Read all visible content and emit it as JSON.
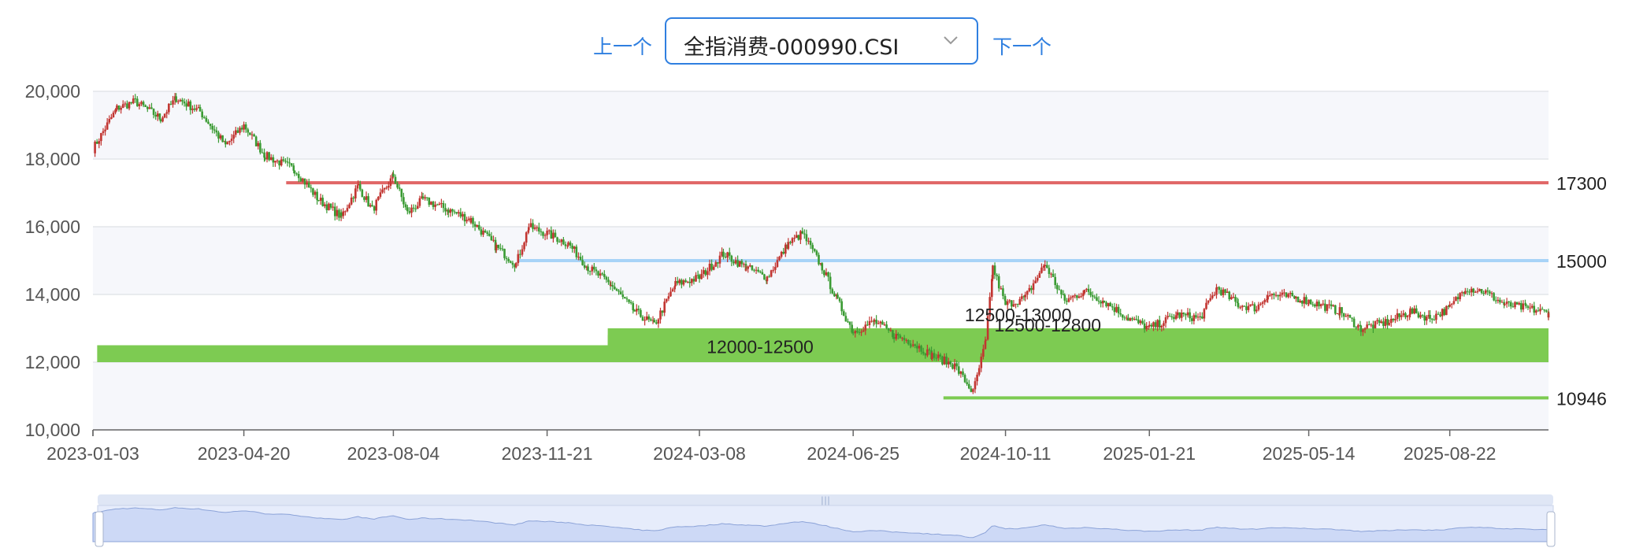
{
  "toolbar": {
    "prev_label": "上一个",
    "next_label": "下一个",
    "selected_index": "全指消费-000990.CSI"
  },
  "colors": {
    "up": "#c23531",
    "down": "#3a9b33",
    "resistance": "#e06666",
    "support_line": "#a7d3f7",
    "zone": "#7dcb52",
    "grid": "#e3e5ea",
    "band": "#f6f7fb"
  },
  "chart_data": {
    "type": "candlestick",
    "title": "",
    "xlabel": "",
    "ylabel": "",
    "ylim": [
      10000,
      20000
    ],
    "y_ticks": [
      10000,
      12000,
      14000,
      16000,
      18000,
      20000
    ],
    "y_tick_labels": [
      "10,000",
      "12,000",
      "14,000",
      "16,000",
      "18,000",
      "20,000"
    ],
    "x_ticks": [
      "2023-01-03",
      "2023-04-20",
      "2023-08-04",
      "2023-11-21",
      "2024-03-08",
      "2024-06-25",
      "2024-10-11",
      "2025-01-21",
      "2025-05-14",
      "2025-08-22"
    ],
    "x_range": [
      "2023-01-03",
      "2025-10-31"
    ],
    "price_path": [
      [
        "2023-01-03",
        18300
      ],
      [
        "2023-01-20",
        19500
      ],
      [
        "2023-02-02",
        19700
      ],
      [
        "2023-02-20",
        19200
      ],
      [
        "2023-03-03",
        19800
      ],
      [
        "2023-03-20",
        19400
      ],
      [
        "2023-04-07",
        18400
      ],
      [
        "2023-04-20",
        19000
      ],
      [
        "2023-05-05",
        18100
      ],
      [
        "2023-05-26",
        17700
      ],
      [
        "2023-06-12",
        16800
      ],
      [
        "2023-06-28",
        16300
      ],
      [
        "2023-07-10",
        17200
      ],
      [
        "2023-07-20",
        16500
      ],
      [
        "2023-08-04",
        17500
      ],
      [
        "2023-08-14",
        16400
      ],
      [
        "2023-08-25",
        16800
      ],
      [
        "2023-09-12",
        16500
      ],
      [
        "2023-09-28",
        16200
      ],
      [
        "2023-10-16",
        15400
      ],
      [
        "2023-10-30",
        14900
      ],
      [
        "2023-11-08",
        16000
      ],
      [
        "2023-11-21",
        15800
      ],
      [
        "2023-12-06",
        15500
      ],
      [
        "2023-12-20",
        14800
      ],
      [
        "2024-01-05",
        14300
      ],
      [
        "2024-01-22",
        13500
      ],
      [
        "2024-02-05",
        13100
      ],
      [
        "2024-02-20",
        14300
      ],
      [
        "2024-03-08",
        14500
      ],
      [
        "2024-03-25",
        15200
      ],
      [
        "2024-04-10",
        14800
      ],
      [
        "2024-04-25",
        14500
      ],
      [
        "2024-05-10",
        15500
      ],
      [
        "2024-05-20",
        15800
      ],
      [
        "2024-06-03",
        14800
      ],
      [
        "2024-06-14",
        13800
      ],
      [
        "2024-06-25",
        12900
      ],
      [
        "2024-07-10",
        13200
      ],
      [
        "2024-07-24",
        12800
      ],
      [
        "2024-08-05",
        12600
      ],
      [
        "2024-08-20",
        12200
      ],
      [
        "2024-09-05",
        11900
      ],
      [
        "2024-09-18",
        11100
      ],
      [
        "2024-09-27",
        12600
      ],
      [
        "2024-10-02",
        14800
      ],
      [
        "2024-10-11",
        13700
      ],
      [
        "2024-10-25",
        13900
      ],
      [
        "2024-11-08",
        14900
      ],
      [
        "2024-11-22",
        13800
      ],
      [
        "2024-12-06",
        14100
      ],
      [
        "2024-12-20",
        13800
      ],
      [
        "2025-01-06",
        13300
      ],
      [
        "2025-01-21",
        13000
      ],
      [
        "2025-02-10",
        13400
      ],
      [
        "2025-02-26",
        13300
      ],
      [
        "2025-03-10",
        14200
      ],
      [
        "2025-03-25",
        13700
      ],
      [
        "2025-04-07",
        13600
      ],
      [
        "2025-04-15",
        14000
      ],
      [
        "2025-05-05",
        13900
      ],
      [
        "2025-05-14",
        13800
      ],
      [
        "2025-06-05",
        13500
      ],
      [
        "2025-06-20",
        13000
      ],
      [
        "2025-07-10",
        13200
      ],
      [
        "2025-07-25",
        13500
      ],
      [
        "2025-08-08",
        13300
      ],
      [
        "2025-08-22",
        13600
      ],
      [
        "2025-09-02",
        14200
      ],
      [
        "2025-09-15",
        14100
      ],
      [
        "2025-09-30",
        13700
      ],
      [
        "2025-10-15",
        13600
      ],
      [
        "2025-10-31",
        13450
      ]
    ],
    "horizontal_lines": [
      {
        "value": 17300,
        "label": "17300",
        "from": "2023-05-20",
        "color": "#e06666"
      },
      {
        "value": 15000,
        "label": "15000",
        "from": "2023-11-01",
        "color": "#a7d3f7"
      },
      {
        "value": 10946,
        "label": "10946",
        "from": "2024-08-28",
        "color": "#7dcb52"
      }
    ],
    "zones": [
      {
        "low": 12000,
        "high": 12500,
        "from": "2023-01-06",
        "label": "12000-12500",
        "label_at": "2024-04-20"
      },
      {
        "low": 12500,
        "high": 13000,
        "from": "2024-01-03",
        "label": "12500-13000",
        "label_at": "2024-10-20"
      },
      {
        "low": 12500,
        "high": 12800,
        "from": "2024-01-03",
        "label": "12500-12800",
        "label_at": "2024-11-10"
      }
    ]
  }
}
